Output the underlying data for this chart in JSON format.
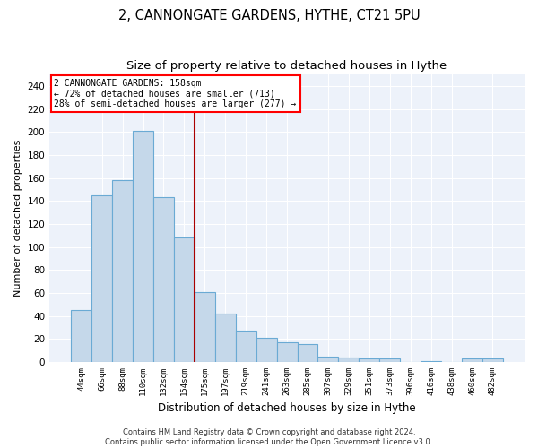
{
  "title1": "2, CANNONGATE GARDENS, HYTHE, CT21 5PU",
  "title2": "Size of property relative to detached houses in Hythe",
  "xlabel": "Distribution of detached houses by size in Hythe",
  "ylabel": "Number of detached properties",
  "bar_labels": [
    "44sqm",
    "66sqm",
    "88sqm",
    "110sqm",
    "132sqm",
    "154sqm",
    "175sqm",
    "197sqm",
    "219sqm",
    "241sqm",
    "263sqm",
    "285sqm",
    "307sqm",
    "329sqm",
    "351sqm",
    "373sqm",
    "396sqm",
    "416sqm",
    "438sqm",
    "460sqm",
    "482sqm"
  ],
  "bar_values": [
    45,
    145,
    158,
    201,
    143,
    108,
    61,
    42,
    27,
    21,
    17,
    16,
    5,
    4,
    3,
    3,
    0,
    1,
    0,
    3,
    3
  ],
  "bar_color": "#c5d8ea",
  "bar_edgecolor": "#6aaad4",
  "vline_color": "#aa0000",
  "vline_pos": 5.5,
  "annotation_line1": "2 CANNONGATE GARDENS: 158sqm",
  "annotation_line2": "← 72% of detached houses are smaller (713)",
  "annotation_line3": "28% of semi-detached houses are larger (277) →",
  "ylim": [
    0,
    250
  ],
  "yticks": [
    0,
    20,
    40,
    60,
    80,
    100,
    120,
    140,
    160,
    180,
    200,
    220,
    240
  ],
  "footnote": "Contains HM Land Registry data © Crown copyright and database right 2024.\nContains public sector information licensed under the Open Government Licence v3.0.",
  "background_color": "#edf2fa",
  "grid_color": "#ffffff"
}
